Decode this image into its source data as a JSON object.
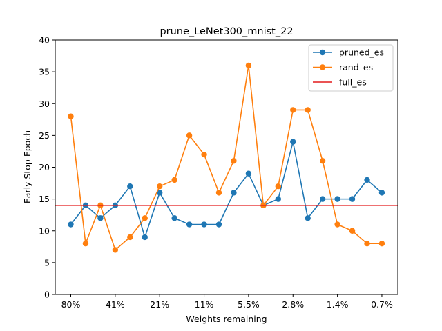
{
  "chart_data": {
    "type": "line",
    "title": "prune_LeNet300_mnist_22",
    "xlabel": "Weights remaining",
    "ylabel": "Early Stop Epoch",
    "ylim": [
      0,
      40
    ],
    "yticks": [
      0,
      5,
      10,
      15,
      20,
      25,
      30,
      35,
      40
    ],
    "x_tick_labels": [
      "80%",
      "41%",
      "21%",
      "11%",
      "5.5%",
      "2.8%",
      "1.4%",
      "0.7%"
    ],
    "x_tick_every": 3,
    "num_points": 22,
    "legend_position": "top-right",
    "grid": false,
    "series": [
      {
        "name": "pruned_es",
        "color": "#1f77b4",
        "values": [
          11,
          14,
          12,
          14,
          17,
          9,
          16,
          12,
          11,
          11,
          11,
          16,
          19,
          14,
          15,
          24,
          12,
          15,
          15,
          15,
          18,
          16
        ]
      },
      {
        "name": "rand_es",
        "color": "#ff7f0e",
        "values": [
          28,
          8,
          14,
          7,
          9,
          12,
          17,
          18,
          25,
          22,
          16,
          21,
          36,
          14,
          17,
          29,
          29,
          21,
          11,
          10,
          8,
          8
        ]
      }
    ],
    "hlines": [
      {
        "name": "full_es",
        "color": "#e31a1c",
        "value": 14
      }
    ]
  }
}
